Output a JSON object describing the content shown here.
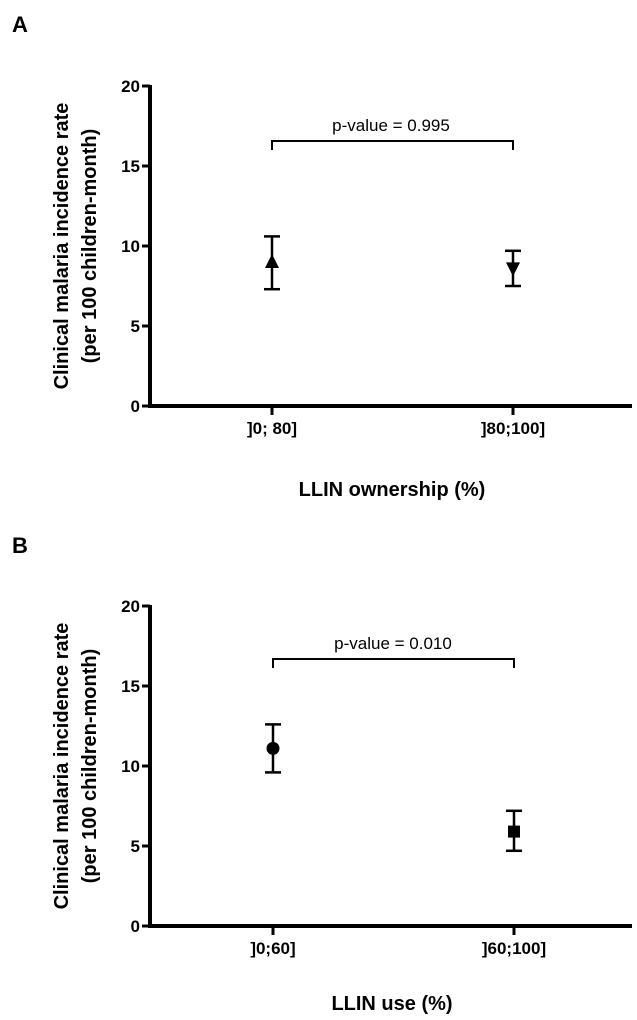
{
  "chart_data": [
    {
      "panel": "A",
      "type": "scatter",
      "ylabel_line1": "Clinical malaria incidence rate",
      "ylabel_line2": "(per 100 children-month)",
      "xlabel": "LLIN ownership (%)",
      "ylim": [
        0,
        20
      ],
      "yticks": [
        "0",
        "5",
        "10",
        "15",
        "20"
      ],
      "categories": [
        "]0; 80]",
        "]80;100]"
      ],
      "points": [
        {
          "category": "]0; 80]",
          "value": 9.0,
          "lower": 7.3,
          "upper": 10.6,
          "marker": "triangle-up"
        },
        {
          "category": "]80;100]",
          "value": 8.6,
          "lower": 7.5,
          "upper": 9.7,
          "marker": "triangle-down"
        }
      ],
      "annotation": "p-value = 0.995"
    },
    {
      "panel": "B",
      "type": "scatter",
      "ylabel_line1": "Clinical malaria incidence rate",
      "ylabel_line2": "(per 100 children-month)",
      "xlabel": "LLIN use (%)",
      "ylim": [
        0,
        20
      ],
      "yticks": [
        "0",
        "5",
        "10",
        "15",
        "20"
      ],
      "categories": [
        "]0;60]",
        "]60;100]"
      ],
      "points": [
        {
          "category": "]0;60]",
          "value": 11.1,
          "lower": 9.6,
          "upper": 12.6,
          "marker": "circle"
        },
        {
          "category": "]60;100]",
          "value": 5.9,
          "lower": 4.7,
          "upper": 7.2,
          "marker": "square"
        }
      ],
      "annotation": "p-value = 0.010"
    }
  ]
}
